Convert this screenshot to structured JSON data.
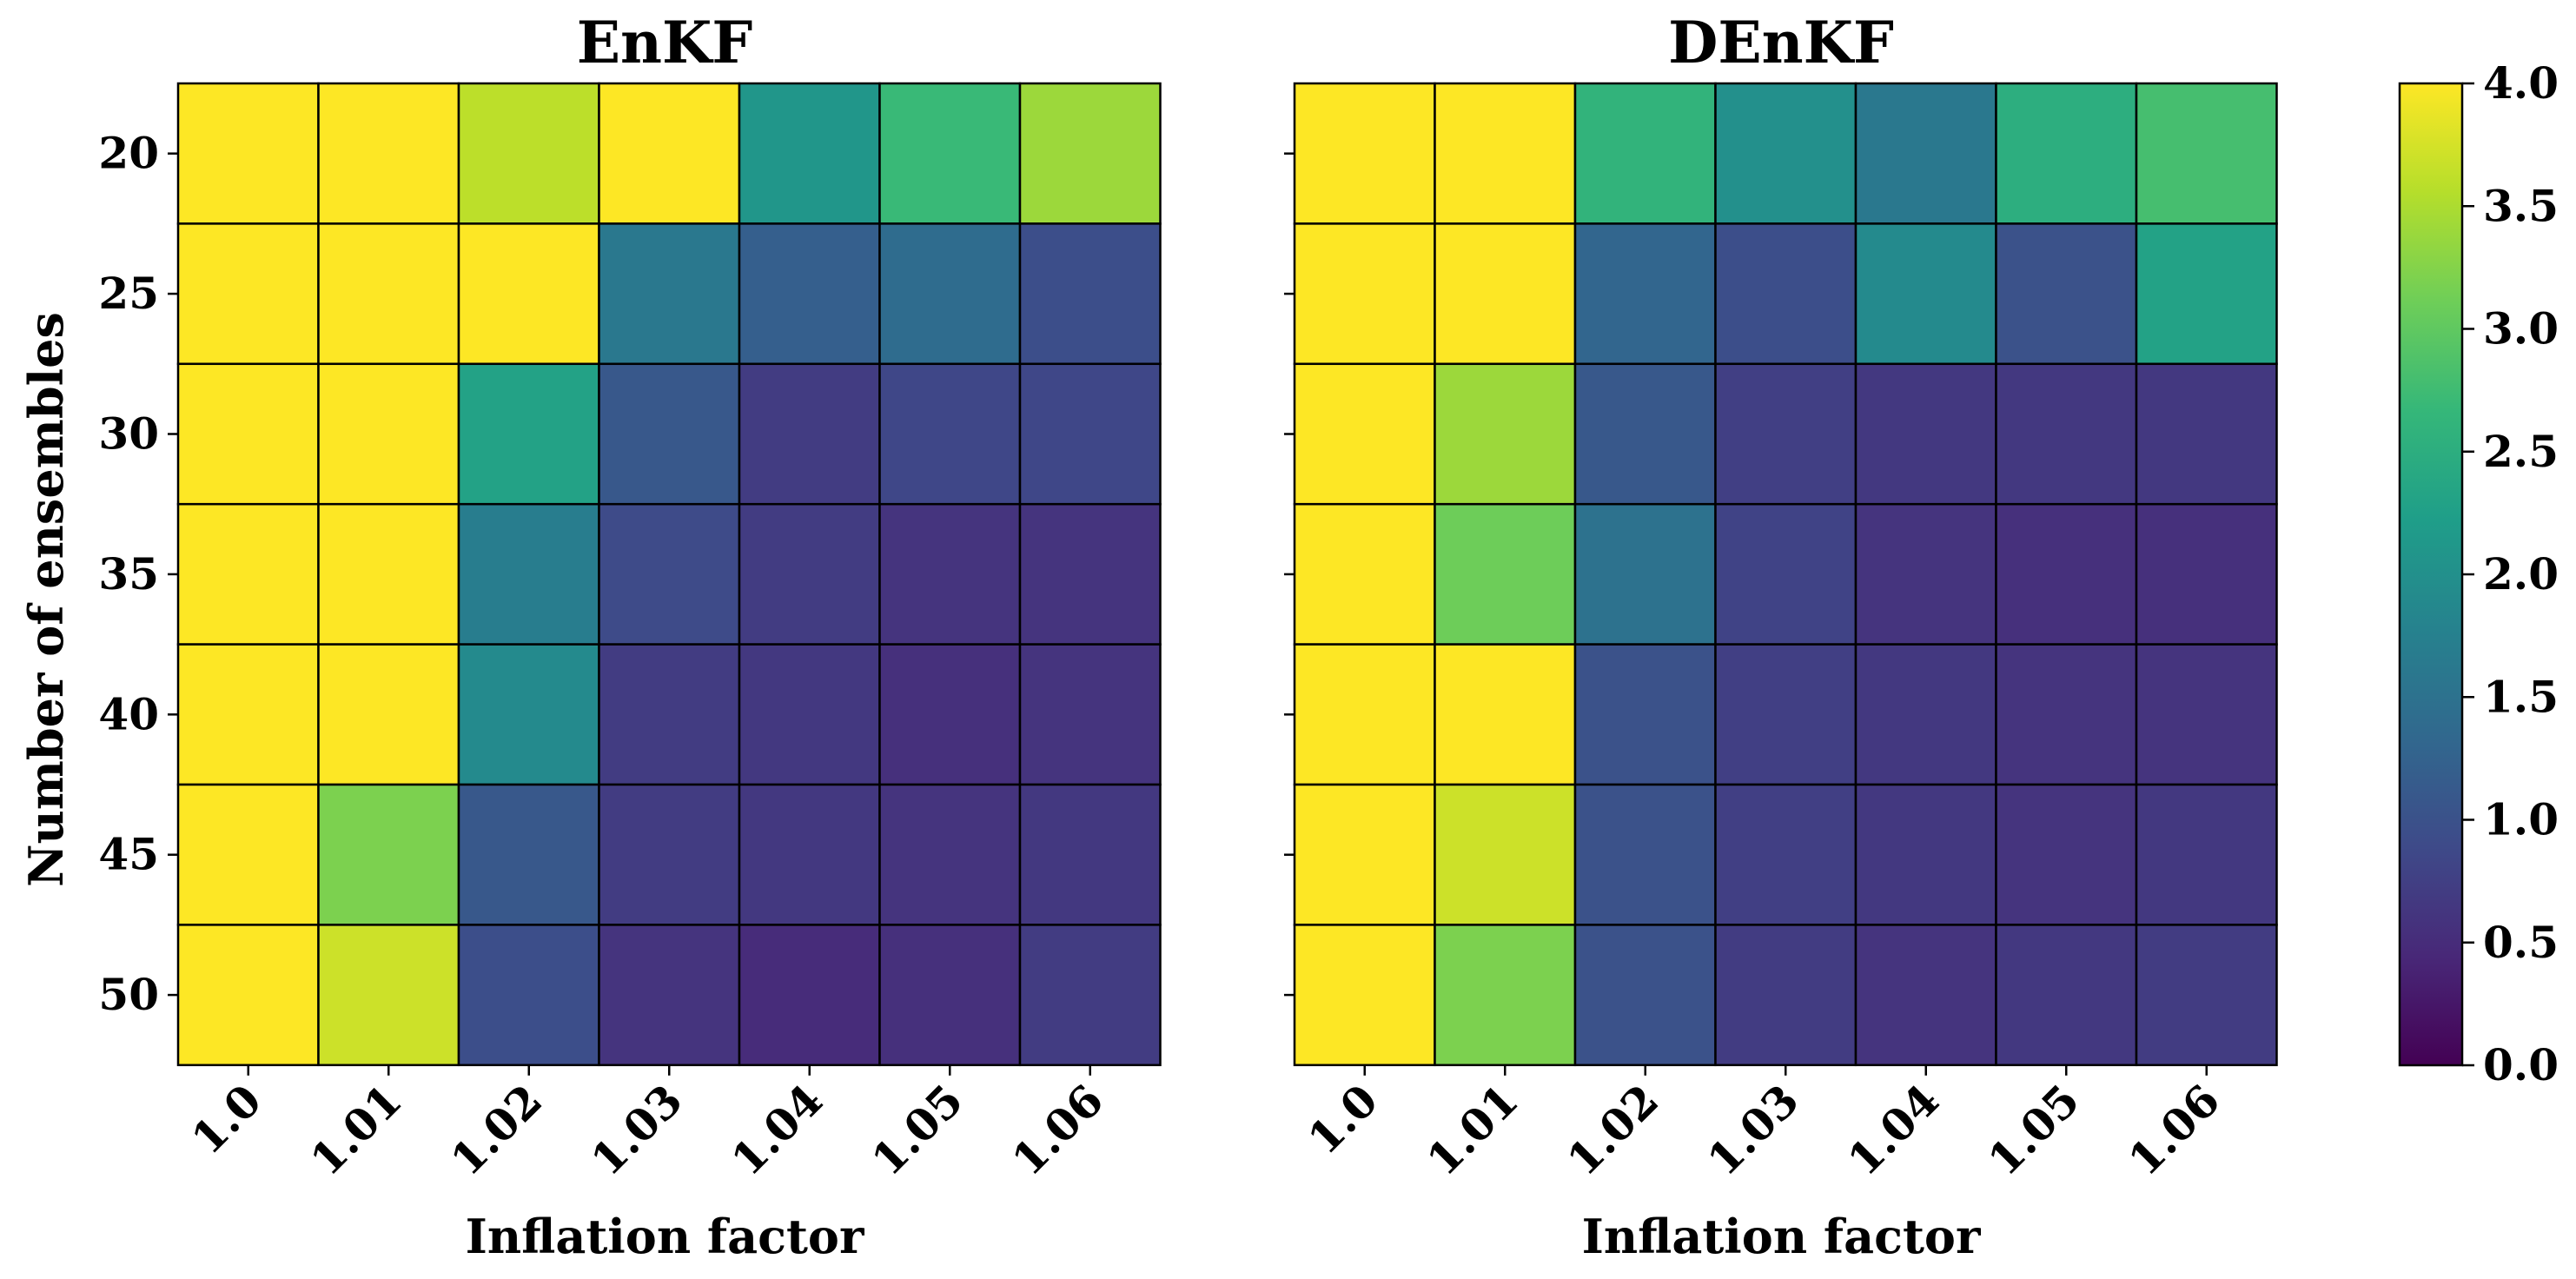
{
  "chart_data": [
    {
      "type": "heatmap",
      "title": "EnKF",
      "xlabel": "Inflation factor",
      "ylabel": "Number of ensembles",
      "x_categories": [
        "1.0",
        "1.01",
        "1.02",
        "1.03",
        "1.04",
        "1.05",
        "1.06"
      ],
      "y_categories": [
        "20",
        "25",
        "30",
        "35",
        "40",
        "45",
        "50"
      ],
      "values": [
        [
          4.0,
          4.0,
          3.6,
          4.0,
          2.1,
          2.7,
          3.4
        ],
        [
          4.0,
          4.0,
          4.0,
          1.6,
          1.2,
          1.4,
          0.95
        ],
        [
          4.0,
          4.0,
          2.3,
          1.1,
          0.7,
          0.85,
          0.85
        ],
        [
          4.0,
          4.0,
          1.7,
          0.9,
          0.7,
          0.6,
          0.6
        ],
        [
          4.0,
          4.0,
          1.9,
          0.7,
          0.65,
          0.55,
          0.6
        ],
        [
          4.0,
          3.2,
          1.1,
          0.7,
          0.65,
          0.6,
          0.65
        ],
        [
          4.0,
          3.7,
          0.95,
          0.6,
          0.5,
          0.55,
          0.7
        ]
      ]
    },
    {
      "type": "heatmap",
      "title": "DEnKF",
      "xlabel": "Inflation factor",
      "ylabel": "",
      "x_categories": [
        "1.0",
        "1.01",
        "1.02",
        "1.03",
        "1.04",
        "1.05",
        "1.06"
      ],
      "y_categories": [
        "20",
        "25",
        "30",
        "35",
        "40",
        "45",
        "50"
      ],
      "values": [
        [
          4.0,
          4.0,
          2.6,
          2.0,
          1.6,
          2.5,
          2.8
        ],
        [
          4.0,
          4.0,
          1.3,
          0.95,
          1.9,
          1.0,
          2.3
        ],
        [
          4.0,
          3.4,
          1.1,
          0.75,
          0.65,
          0.65,
          0.65
        ],
        [
          4.0,
          3.1,
          1.5,
          0.8,
          0.6,
          0.55,
          0.55
        ],
        [
          4.0,
          4.0,
          1.0,
          0.75,
          0.65,
          0.6,
          0.6
        ],
        [
          4.0,
          3.7,
          1.0,
          0.75,
          0.65,
          0.6,
          0.65
        ],
        [
          4.0,
          3.2,
          1.0,
          0.7,
          0.6,
          0.65,
          0.7
        ]
      ]
    }
  ],
  "colorbar": {
    "colormap": "viridis",
    "vmin": 0.0,
    "vmax": 4.0,
    "tick_labels": [
      "0.0",
      "0.5",
      "1.0",
      "1.5",
      "2.0",
      "2.5",
      "3.0",
      "3.5",
      "4.0"
    ]
  }
}
